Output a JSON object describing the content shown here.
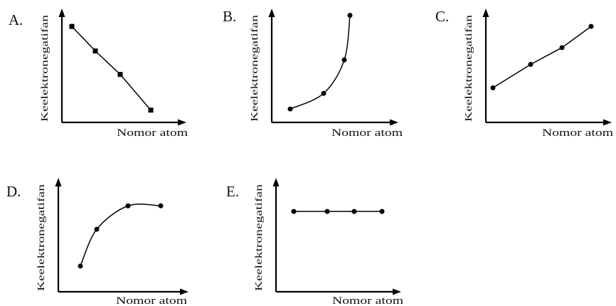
{
  "chart_data": [
    {
      "option": "A.",
      "type": "line",
      "curve": "straight",
      "marker": "square",
      "ylabel": "Keelektronegatifan",
      "xlabel": "Nomor atom",
      "x": [
        1,
        2,
        3,
        4
      ],
      "y": [
        0.86,
        0.64,
        0.43,
        0.11
      ],
      "xlim": [
        0,
        4.6
      ],
      "ylim": [
        0,
        1
      ]
    },
    {
      "option": "B.",
      "type": "line",
      "curve": "smooth",
      "marker": "circle",
      "ylabel": "Keelektronegatifan",
      "xlabel": "Nomor atom",
      "x": [
        1,
        2,
        3,
        4
      ],
      "y": [
        0.12,
        0.26,
        0.56,
        0.96
      ],
      "xlim": [
        0,
        4.6
      ],
      "ylim": [
        0,
        1
      ]
    },
    {
      "option": "C.",
      "type": "line",
      "curve": "straight",
      "marker": "circle",
      "ylabel": "Keelektronegatifan",
      "xlabel": "Nomor atom",
      "x": [
        1,
        2,
        3,
        4
      ],
      "y": [
        0.31,
        0.52,
        0.67,
        0.86
      ],
      "xlim": [
        0,
        4.6
      ],
      "ylim": [
        0,
        1
      ]
    },
    {
      "option": "D.",
      "type": "line",
      "curve": "smooth",
      "marker": "circle",
      "ylabel": "Keelektronegatifan",
      "xlabel": "Nomor atom",
      "x": [
        1,
        2,
        3,
        4
      ],
      "y": [
        0.23,
        0.56,
        0.77,
        0.77
      ],
      "xlim": [
        0,
        4.6
      ],
      "ylim": [
        0,
        1
      ]
    },
    {
      "option": "E.",
      "type": "line",
      "curve": "straight",
      "marker": "circle",
      "ylabel": "Keelektronegatifan",
      "xlabel": "Nomor atom",
      "x": [
        1,
        2,
        3,
        4
      ],
      "y": [
        0.72,
        0.72,
        0.72,
        0.72
      ],
      "xlim": [
        0,
        4.6
      ],
      "ylim": [
        0,
        1
      ]
    }
  ]
}
